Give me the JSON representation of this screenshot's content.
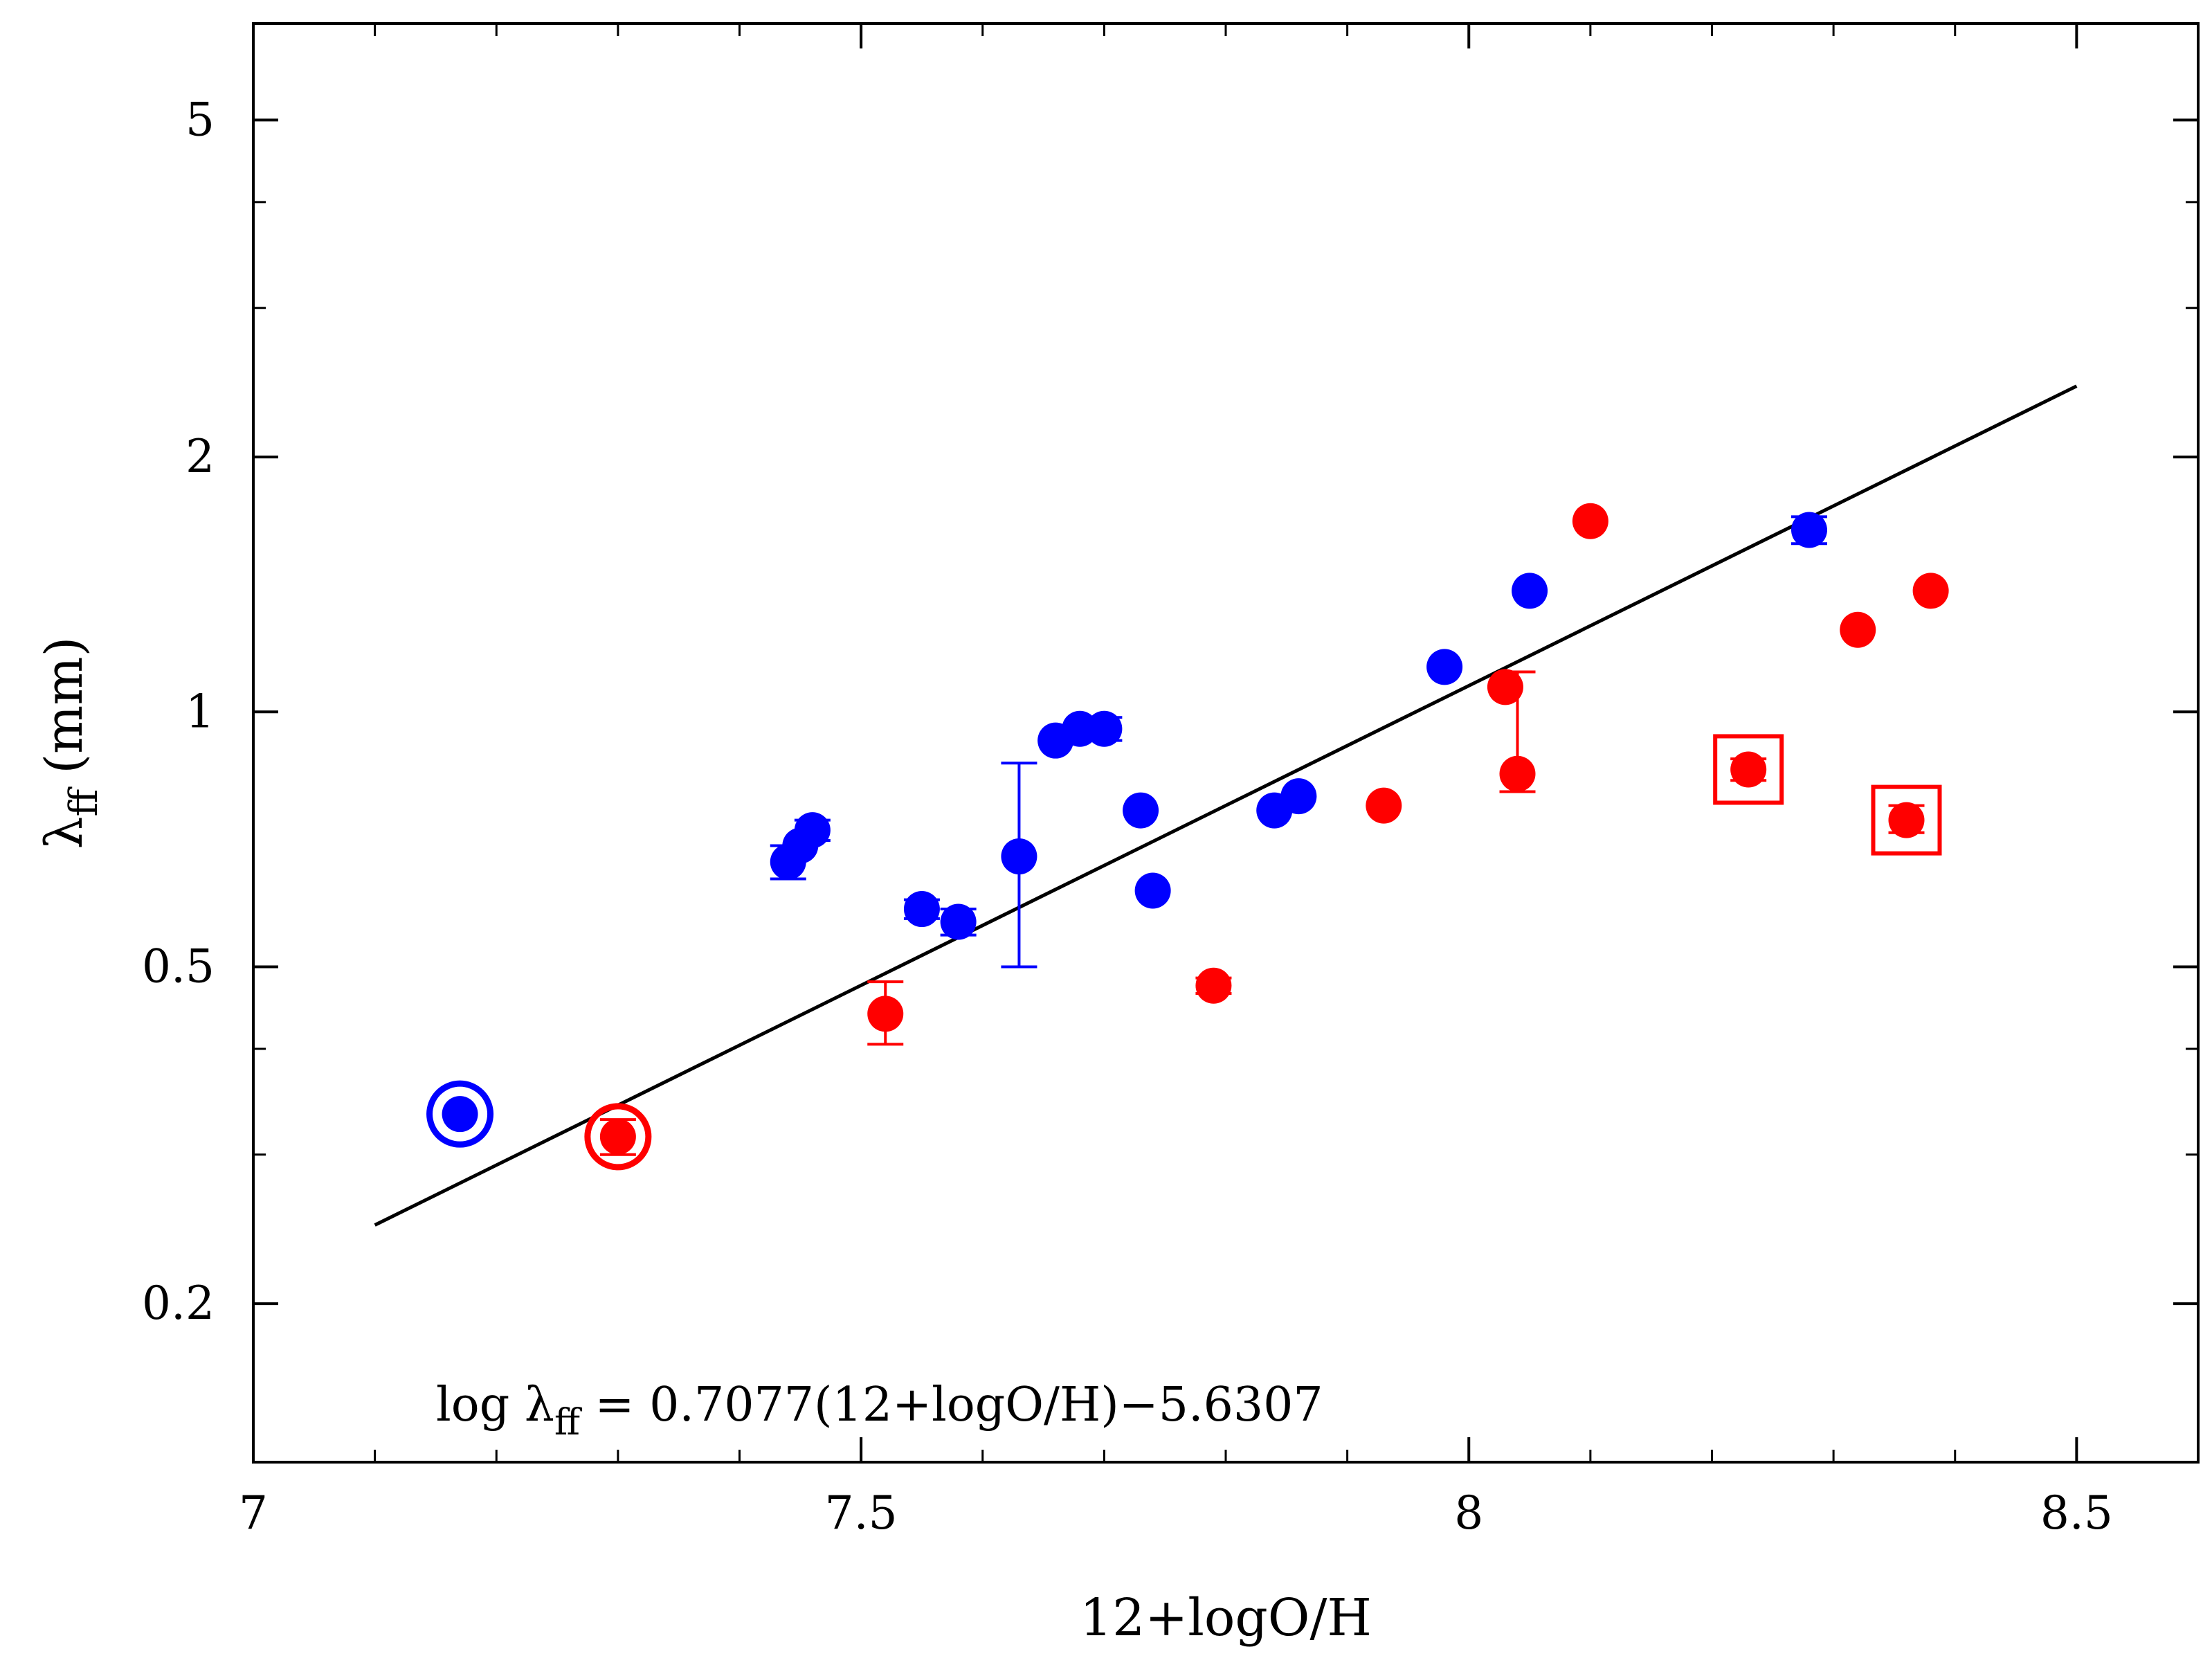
{
  "chart_data": {
    "type": "scatter",
    "title": "",
    "xlabel": "12+logO/H",
    "ylabel_symbol": "λ",
    "ylabel_subscript": "ff",
    "ylabel_unit": "(mm)",
    "yscale": "log",
    "xlim": [
      7.0,
      8.6
    ],
    "ylim": [
      0.13,
      6.5
    ],
    "x_ticks": [
      {
        "value": 7.0,
        "label": "7"
      },
      {
        "value": 7.5,
        "label": "7.5"
      },
      {
        "value": 8.0,
        "label": "8"
      },
      {
        "value": 8.5,
        "label": "8.5"
      }
    ],
    "x_minor_ticks": [
      7.1,
      7.2,
      7.3,
      7.4,
      7.6,
      7.7,
      7.8,
      7.9,
      8.1,
      8.2,
      8.3,
      8.4
    ],
    "y_ticks": [
      {
        "value": 0.2,
        "label": "0.2"
      },
      {
        "value": 0.5,
        "label": "0.5"
      },
      {
        "value": 1,
        "label": "1"
      },
      {
        "value": 2,
        "label": "2"
      },
      {
        "value": 5,
        "label": "5"
      }
    ],
    "y_minor_ticks": [
      0.3,
      0.4,
      3,
      4
    ],
    "grid": false,
    "fit": {
      "slope": 0.7077,
      "intercept": -5.6307,
      "x_range": [
        7.1,
        8.5
      ],
      "label_parts": {
        "prefix": "log λ",
        "subscript": "ff",
        "suffix": " = 0.7077(12+logO/H)−5.6307"
      }
    },
    "series": [
      {
        "name": "blue",
        "color": "#0000ff",
        "points": [
          {
            "x": 7.17,
            "y": 0.335,
            "marker": "circled"
          },
          {
            "x": 7.44,
            "y": 0.665,
            "err_lo": 0.03,
            "err_hi": 0.03
          },
          {
            "x": 7.45,
            "y": 0.695
          },
          {
            "x": 7.46,
            "y": 0.725,
            "err_lo": 0.02,
            "err_hi": 0.02
          },
          {
            "x": 7.55,
            "y": 0.585,
            "err_lo": 0.015,
            "err_hi": 0.015
          },
          {
            "x": 7.58,
            "y": 0.565,
            "err_lo": 0.02,
            "err_hi": 0.02
          },
          {
            "x": 7.63,
            "y": 0.675,
            "err_lo": 0.175,
            "err_hi": 0.195
          },
          {
            "x": 7.66,
            "y": 0.925
          },
          {
            "x": 7.68,
            "y": 0.955
          },
          {
            "x": 7.7,
            "y": 0.955,
            "err_lo": 0.03,
            "err_hi": 0.03
          },
          {
            "x": 7.73,
            "y": 0.765
          },
          {
            "x": 7.74,
            "y": 0.615
          },
          {
            "x": 7.84,
            "y": 0.765
          },
          {
            "x": 7.86,
            "y": 0.795
          },
          {
            "x": 7.98,
            "y": 1.13
          },
          {
            "x": 8.05,
            "y": 1.39
          },
          {
            "x": 8.28,
            "y": 1.64,
            "err_lo": 0.06,
            "err_hi": 0.06
          }
        ]
      },
      {
        "name": "red",
        "color": "#ff0000",
        "points": [
          {
            "x": 7.3,
            "y": 0.315,
            "marker": "circled",
            "err_lo": 0.015,
            "err_hi": 0.015
          },
          {
            "x": 7.52,
            "y": 0.44,
            "err_lo": 0.035,
            "err_hi": 0.04
          },
          {
            "x": 7.79,
            "y": 0.475,
            "err_lo": 0.01,
            "err_hi": 0.01
          },
          {
            "x": 7.93,
            "y": 0.775
          },
          {
            "x": 8.03,
            "y": 1.07
          },
          {
            "x": 8.04,
            "y": 0.845,
            "err_lo": 0.04,
            "err_hi": 0.27
          },
          {
            "x": 8.1,
            "y": 1.68
          },
          {
            "x": 8.23,
            "y": 0.855,
            "marker": "boxed",
            "err_lo": 0.025,
            "err_hi": 0.025
          },
          {
            "x": 8.32,
            "y": 1.25
          },
          {
            "x": 8.36,
            "y": 0.745,
            "marker": "boxed",
            "err_lo": 0.025,
            "err_hi": 0.03
          },
          {
            "x": 8.38,
            "y": 1.39
          }
        ]
      }
    ]
  }
}
